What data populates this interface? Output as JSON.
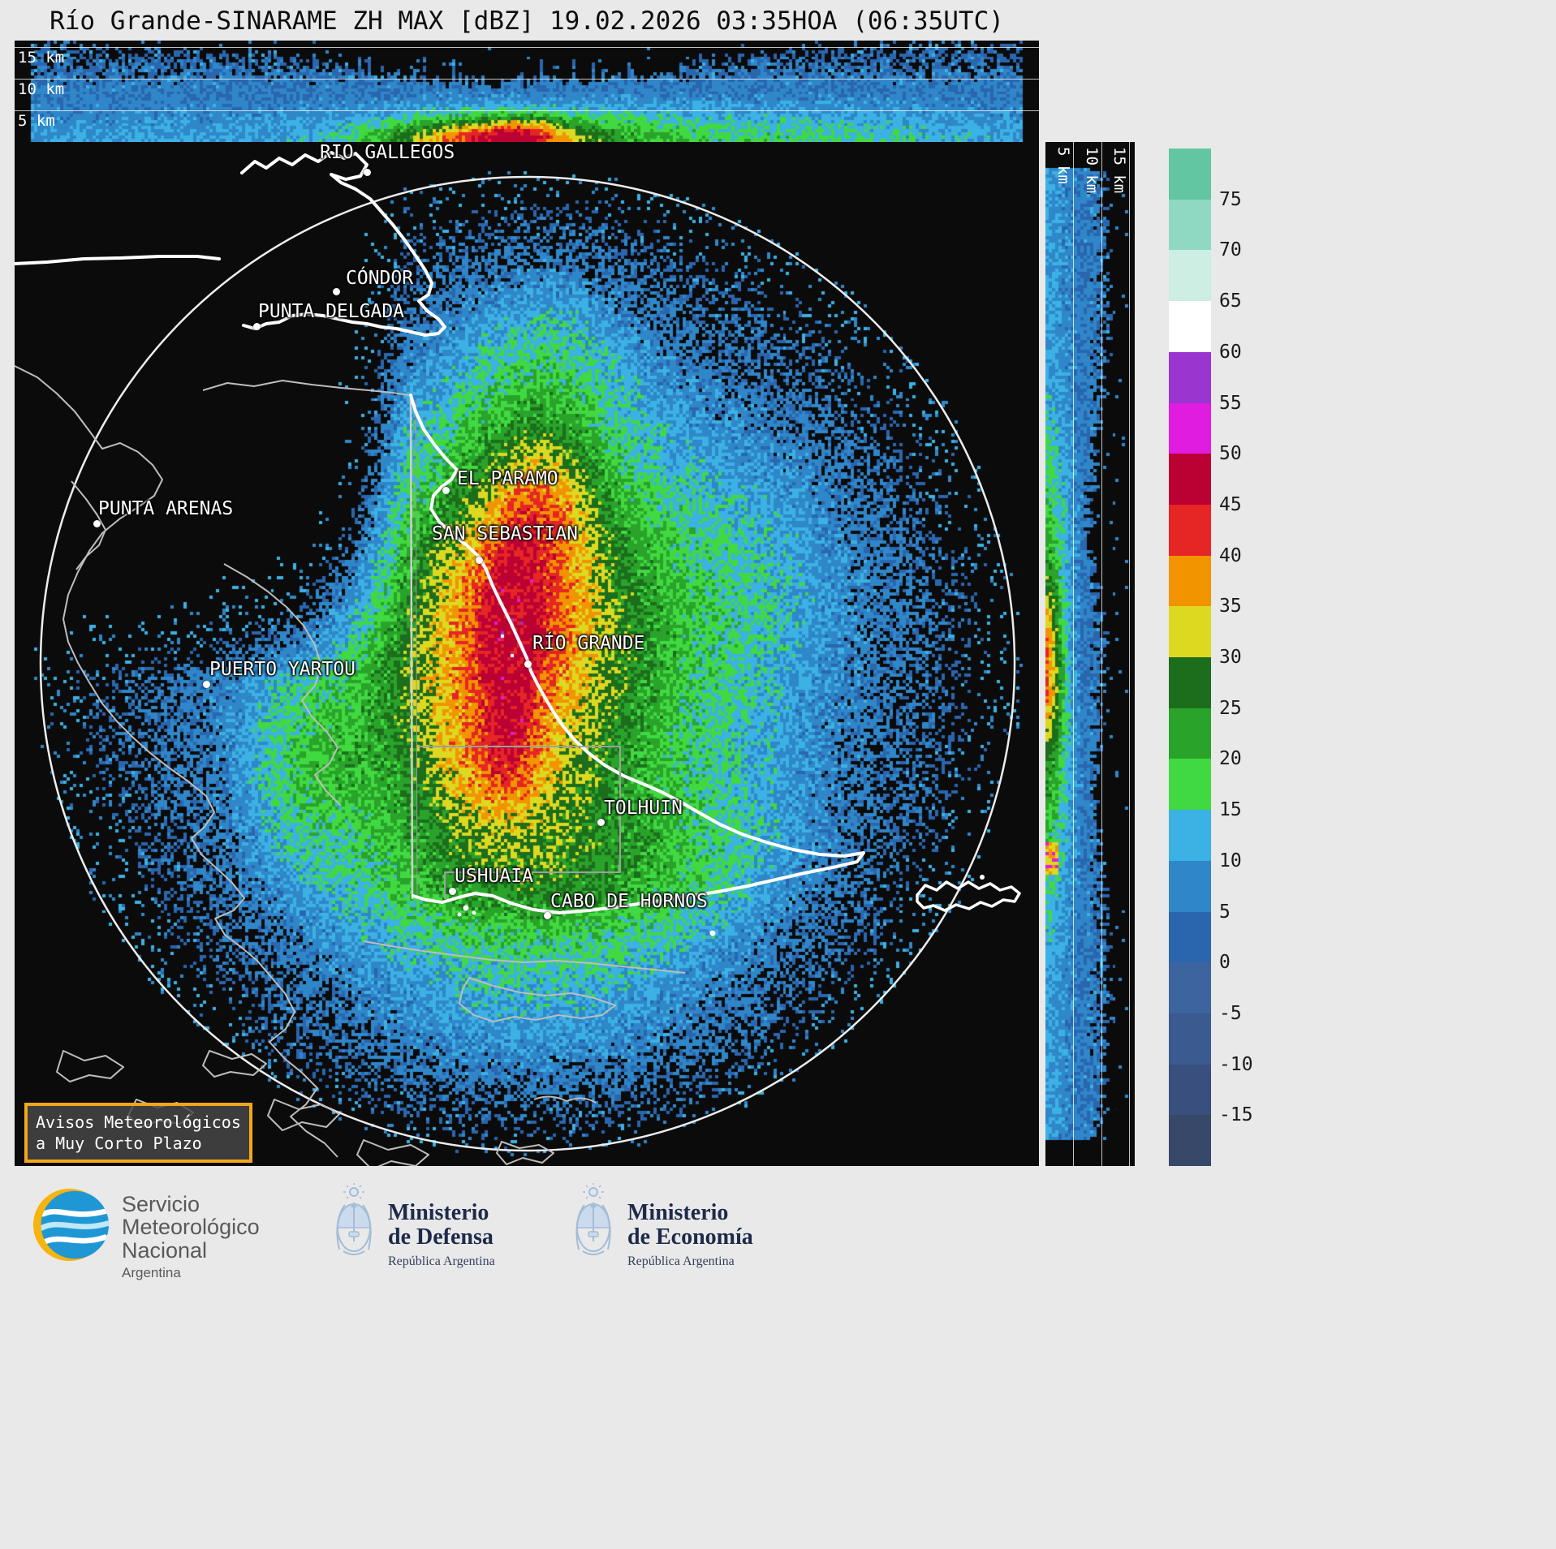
{
  "title": "Río Grande-SINARAME ZH MAX [dBZ] 19.02.2026 03:35HOA (06:35UTC)",
  "product": {
    "radar": "Río Grande-SINARAME",
    "variable": "ZH MAX",
    "units": "dBZ",
    "date": "19.02.2026",
    "time_local": "03:35HOA",
    "time_utc": "06:35UTC"
  },
  "top_profile": {
    "labels": [
      "15 km",
      "10 km",
      "5 km"
    ]
  },
  "right_profile": {
    "labels": [
      "5 km",
      "10 km",
      "15 km"
    ]
  },
  "colorbar": {
    "unit": "dBZ",
    "ticks": [
      "75",
      "70",
      "65",
      "60",
      "55",
      "50",
      "45",
      "40",
      "35",
      "30",
      "25",
      "20",
      "15",
      "10",
      "5",
      "0",
      "-5",
      "-10",
      "-15"
    ],
    "segments": [
      "#63c6a2",
      "#8fd8c1",
      "#cdeee2",
      "#ffffff",
      "#9a35cf",
      "#e01ce0",
      "#bb0033",
      "#e62525",
      "#f29300",
      "#ddd820",
      "#1c6e1c",
      "#2aa32a",
      "#41d941",
      "#3cb1e3",
      "#2f87ca",
      "#2a66ae",
      "#3c649e",
      "#3a5a90",
      "#39507e",
      "#384868"
    ]
  },
  "map": {
    "cities": [
      {
        "name": "RIO GALLEGOS",
        "label": [
          376,
          0
        ],
        "dot": [
          434,
          37
        ]
      },
      {
        "name": "CÓNDOR",
        "label": [
          408,
          155
        ],
        "dot": [
          396,
          184
        ]
      },
      {
        "name": "PUNTA DELGADA",
        "label": [
          300,
          196
        ],
        "dot": [
          298,
          227
        ]
      },
      {
        "name": "PUNTA ARENAS",
        "label": [
          103,
          439
        ],
        "dot": [
          101,
          470
        ]
      },
      {
        "name": "EL PARAMO",
        "label": [
          545,
          402
        ],
        "dot": [
          531,
          429
        ]
      },
      {
        "name": "SAN SEBASTIAN",
        "label": [
          514,
          470
        ],
        "dot": [
          572,
          515
        ]
      },
      {
        "name": "RÍO GRANDE",
        "label": [
          638,
          605
        ],
        "dot": [
          632,
          643
        ]
      },
      {
        "name": "PUERTO YARTOU",
        "label": [
          240,
          637
        ],
        "dot": [
          236,
          668
        ]
      },
      {
        "name": "TOLHUIN",
        "label": [
          726,
          808
        ],
        "dot": [
          722,
          838
        ]
      },
      {
        "name": "USHUAIA",
        "label": [
          542,
          892
        ],
        "dot": [
          539,
          923
        ]
      },
      {
        "name": "CABO DE HORNOS",
        "label": [
          660,
          923
        ],
        "dot": [
          656,
          953
        ]
      }
    ]
  },
  "warning_box": {
    "lines": [
      "Avisos Meteorológicos",
      "a Muy Corto Plazo"
    ]
  },
  "footer": {
    "smn": {
      "name_lines": [
        "Servicio",
        "Meteorológico",
        "Nacional"
      ],
      "country": "Argentina"
    },
    "ministries": [
      {
        "name_lines": [
          "Ministerio",
          "de Defensa"
        ],
        "sub": "República Argentina"
      },
      {
        "name_lines": [
          "Ministerio",
          "de Economía"
        ],
        "sub": "República Argentina"
      }
    ]
  }
}
